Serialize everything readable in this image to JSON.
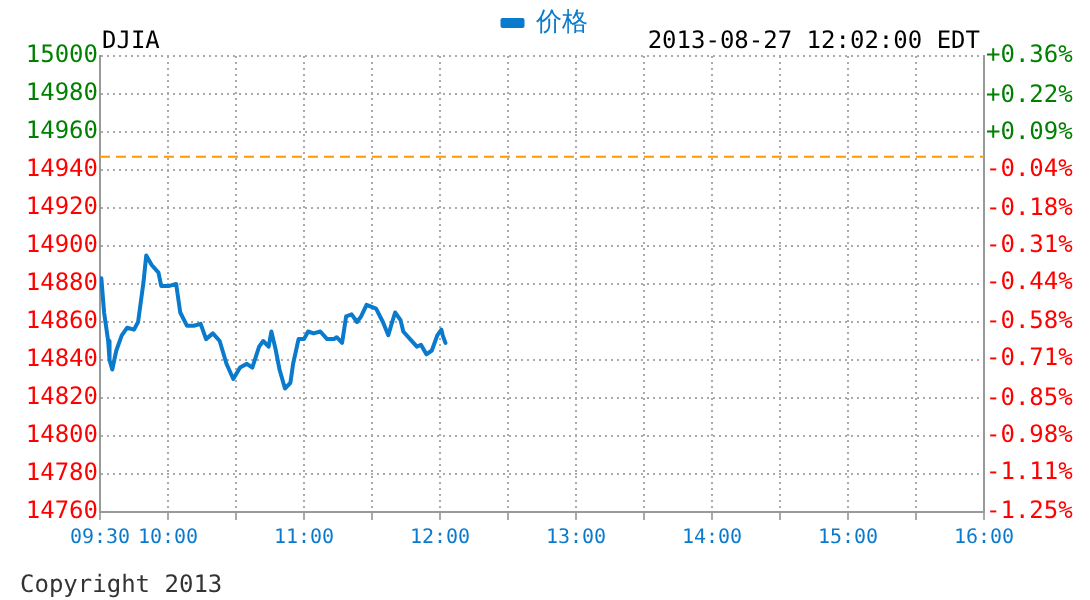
{
  "chart_data": {
    "type": "line",
    "title": "DJIA",
    "subtitle": "2013-08-27 12:02:00 EDT",
    "annotations": [
      "Copyright 2013"
    ],
    "legend": "top",
    "grid": true,
    "marker": "none",
    "line_style": "solid",
    "xlim": [
      9.5,
      16
    ],
    "xticks": [
      {
        "value": 9.5,
        "label": "09:30"
      },
      {
        "value": 10,
        "label": "10:00"
      },
      {
        "value": 10.5,
        "label": null
      },
      {
        "value": 11,
        "label": "11:00"
      },
      {
        "value": 11.5,
        "label": null
      },
      {
        "value": 12,
        "label": "12:00"
      },
      {
        "value": 12.5,
        "label": null
      },
      {
        "value": 13,
        "label": "13:00"
      },
      {
        "value": 13.5,
        "label": null
      },
      {
        "value": 14,
        "label": "14:00"
      },
      {
        "value": 14.5,
        "label": null
      },
      {
        "value": 15,
        "label": "15:00"
      },
      {
        "value": 15.5,
        "label": null
      },
      {
        "value": 16,
        "label": "16:00"
      }
    ],
    "ylim": [
      14760,
      15000
    ],
    "yticks": [
      14760,
      14780,
      14800,
      14820,
      14840,
      14860,
      14880,
      14900,
      14920,
      14940,
      14960,
      14980,
      15000
    ],
    "y2lim": [
      -1.25,
      0.36
    ],
    "y2ticks": [
      {
        "value": 0.36,
        "label": "+0.36%"
      },
      {
        "value": 0.22,
        "label": "+0.22%"
      },
      {
        "value": 0.09,
        "label": "+0.09%"
      },
      {
        "value": -0.04,
        "label": "-0.04%"
      },
      {
        "value": -0.18,
        "label": "-0.18%"
      },
      {
        "value": -0.31,
        "label": "-0.31%"
      },
      {
        "value": -0.44,
        "label": "-0.44%"
      },
      {
        "value": -0.58,
        "label": "-0.58%"
      },
      {
        "value": -0.71,
        "label": "-0.71%"
      },
      {
        "value": -0.85,
        "label": "-0.85%"
      },
      {
        "value": -0.98,
        "label": "-0.98%"
      },
      {
        "value": -1.11,
        "label": "-1.11%"
      },
      {
        "value": -1.25,
        "label": "-1.25%"
      }
    ],
    "ref_lines": [
      {
        "axis": "y",
        "value": 14947,
        "color": "#ff9900",
        "line_style": "dashed"
      }
    ],
    "series": [
      {
        "name": "价格",
        "color": "#0a7acc",
        "x": [
          9.51,
          9.53,
          9.56,
          9.57,
          9.59,
          9.62,
          9.66,
          9.7,
          9.75,
          9.78,
          9.82,
          9.84,
          9.88,
          9.93,
          9.95,
          10.01,
          10.06,
          10.09,
          10.14,
          10.19,
          10.24,
          10.28,
          10.33,
          10.38,
          10.43,
          10.48,
          10.53,
          10.58,
          10.62,
          10.67,
          10.7,
          10.74,
          10.76,
          10.79,
          10.82,
          10.86,
          10.9,
          10.92,
          10.96,
          11,
          11.03,
          11.07,
          11.12,
          11.17,
          11.22,
          11.24,
          11.28,
          11.31,
          11.35,
          11.39,
          11.42,
          11.46,
          11.53,
          11.58,
          11.62,
          11.64,
          11.67,
          11.71,
          11.73,
          11.78,
          11.83,
          11.86,
          11.9,
          11.94,
          11.98,
          12.01,
          12.02,
          12.04
        ],
        "values": [
          14883,
          14865,
          14850,
          14840,
          14835,
          14845,
          14853,
          14857,
          14856,
          14860,
          14881,
          14895,
          14890,
          14886,
          14879,
          14879,
          14880,
          14865,
          14858,
          14858,
          14859,
          14851,
          14854,
          14850,
          14838,
          14830,
          14836,
          14838,
          14836,
          14847,
          14850,
          14847,
          14855,
          14846,
          14835,
          14825,
          14828,
          14838,
          14851,
          14851,
          14855,
          14854,
          14855,
          14851,
          14851,
          14852,
          14849,
          14863,
          14864,
          14860,
          14863,
          14869,
          14867,
          14860,
          14853,
          14858,
          14865,
          14861,
          14855,
          14851,
          14847,
          14848,
          14843,
          14845,
          14853,
          14856,
          14853,
          14849
        ]
      }
    ]
  }
}
